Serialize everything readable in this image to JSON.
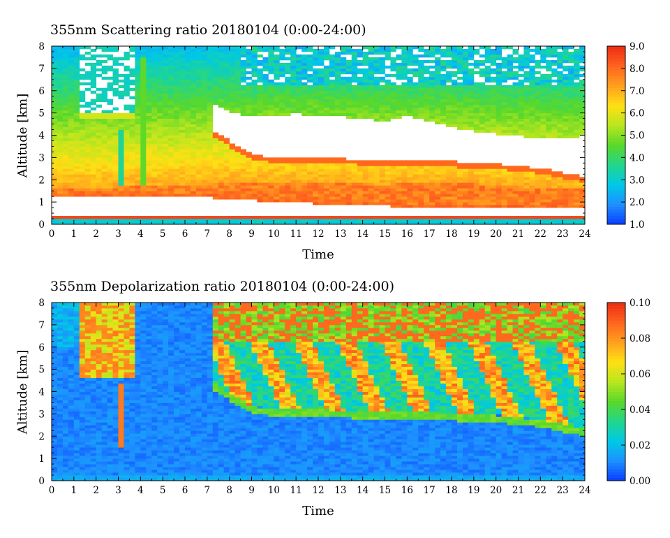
{
  "chart_data": [
    {
      "type": "heatmap",
      "title": "355nm Scattering ratio  20180104 (0:00-24:00)",
      "xlabel": "Time",
      "ylabel": "Altitude [km]",
      "xlim": [
        0,
        24
      ],
      "ylim": [
        0,
        8
      ],
      "x_ticks": [
        "0",
        "1",
        "2",
        "3",
        "4",
        "5",
        "6",
        "7",
        "8",
        "9",
        "10",
        "11",
        "12",
        "13",
        "14",
        "15",
        "16",
        "17",
        "18",
        "19",
        "20",
        "21",
        "22",
        "23",
        "24"
      ],
      "y_ticks": [
        "0",
        "1",
        "2",
        "3",
        "4",
        "5",
        "6",
        "7",
        "8"
      ],
      "colorbar": {
        "range": [
          1.0,
          9.0
        ],
        "tick_labels": [
          "1.0",
          "2.0",
          "3.0",
          "4.0",
          "5.0",
          "6.0",
          "7.0",
          "8.0",
          "9.0"
        ]
      }
    },
    {
      "type": "heatmap",
      "title": "355nm Depolarization ratio  20180104 (0:00-24:00)",
      "xlabel": "Time",
      "ylabel": "Altitude [km]",
      "xlim": [
        0,
        24
      ],
      "ylim": [
        0,
        8
      ],
      "x_ticks": [
        "0",
        "1",
        "2",
        "3",
        "4",
        "5",
        "6",
        "7",
        "8",
        "9",
        "10",
        "11",
        "12",
        "13",
        "14",
        "15",
        "16",
        "17",
        "18",
        "19",
        "20",
        "21",
        "22",
        "23",
        "24"
      ],
      "y_ticks": [
        "0",
        "1",
        "2",
        "3",
        "4",
        "5",
        "6",
        "7",
        "8"
      ],
      "colorbar": {
        "range": [
          0.0,
          0.1
        ],
        "tick_labels": [
          "0.00",
          "0.02",
          "0.04",
          "0.06",
          "0.08",
          "0.10"
        ]
      }
    }
  ],
  "colors": {
    "colormap": [
      "#0a3cff",
      "#1e90ff",
      "#00c8e6",
      "#22d68c",
      "#5ad82a",
      "#b8e61e",
      "#ffe014",
      "#ffa01e",
      "#ff641e",
      "#eb2d14"
    ]
  }
}
